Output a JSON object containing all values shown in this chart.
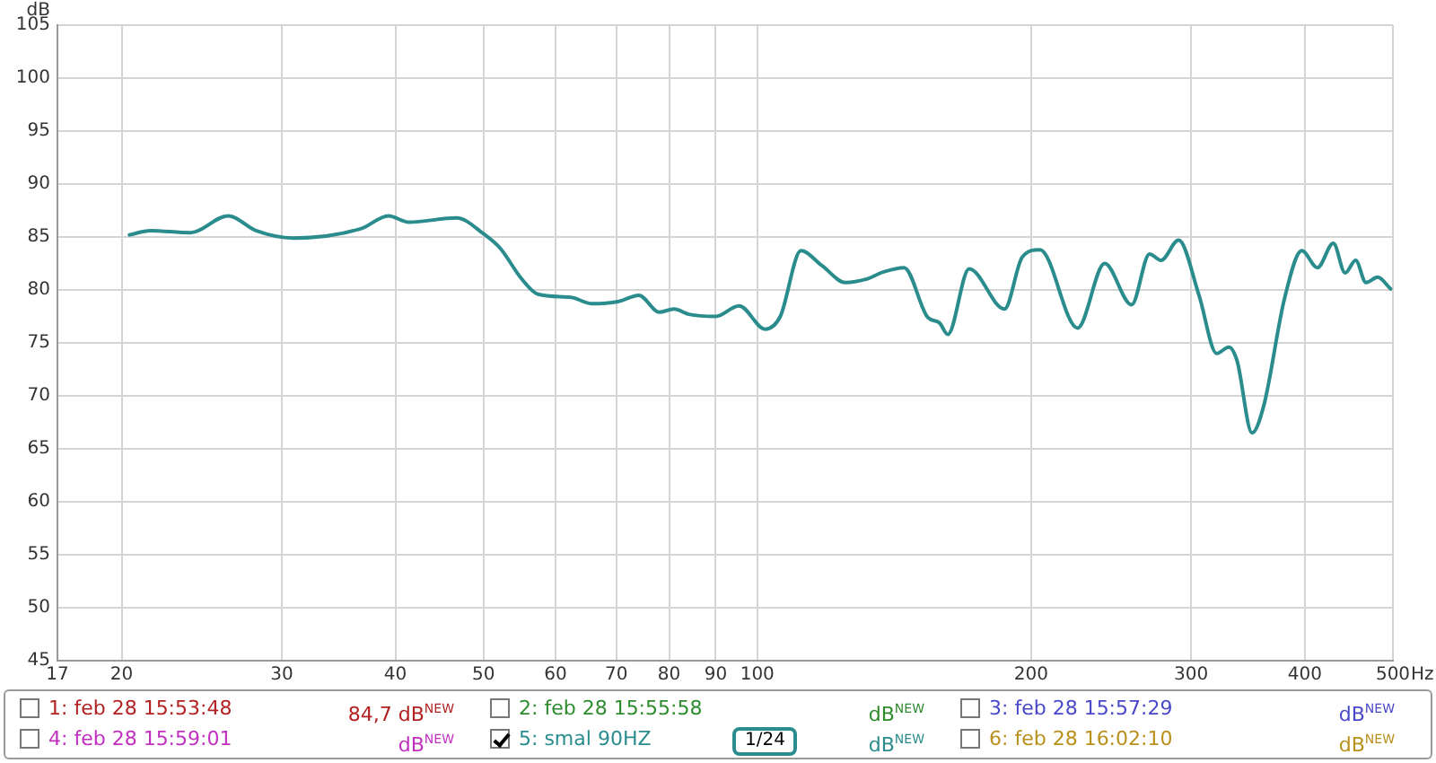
{
  "chart_data": {
    "type": "line",
    "xlabel": "Hz",
    "ylabel": "dB",
    "log": "x",
    "xlim": [
      17,
      500
    ],
    "xticks": [
      17,
      20,
      30,
      40,
      50,
      60,
      70,
      80,
      90,
      100,
      200,
      300,
      400,
      500
    ],
    "ylim": [
      45,
      105
    ],
    "yticks": [
      45,
      50,
      55,
      60,
      65,
      70,
      75,
      80,
      85,
      90,
      95,
      100,
      105
    ],
    "grid": true,
    "legend": "bottom",
    "marker": "none",
    "line_style": "solid",
    "series": [
      {
        "name": "5: smal 90HZ",
        "color": "#2a8c8c",
        "x": [
          20.4,
          21.5,
          23.8,
          26.2,
          28.1,
          30.9,
          36.7,
          39.3,
          41.4,
          46.7,
          50,
          52.2,
          55,
          57.4,
          62.4,
          65.8,
          70.3,
          74.1,
          78,
          81,
          84.1,
          90,
          95.5,
          102,
          106,
          111.7,
          117.8,
          125,
          131.6,
          137.7,
          145,
          154,
          158.6,
          162,
          171,
          187,
          195.6,
          204.6,
          225,
          241,
          258,
          270,
          278,
          290.6,
          306,
          320,
          330,
          337,
          350,
          360.6,
          380,
          397,
          413,
          430,
          443,
          455,
          467,
          481,
          497
        ],
        "values": [
          85.2,
          85.6,
          85.4,
          87.0,
          85.6,
          84.9,
          85.8,
          87.0,
          86.4,
          86.8,
          85.3,
          83.9,
          81.1,
          79.6,
          79.3,
          78.7,
          78.9,
          79.5,
          77.9,
          78.2,
          77.7,
          77.5,
          78.5,
          76.3,
          77.5,
          83.7,
          82.3,
          80.7,
          81.0,
          81.7,
          82.1,
          77.4,
          76.9,
          75.8,
          82.0,
          78.2,
          83.1,
          83.8,
          76.4,
          82.5,
          78.6,
          83.4,
          82.8,
          84.7,
          79.5,
          74.0,
          74.6,
          73.3,
          66.5,
          69.1,
          79.2,
          83.7,
          82.1,
          84.4,
          81.6,
          82.8,
          80.7,
          81.2,
          80.1
        ]
      }
    ],
    "annotations": [
      "1: feb 28 15:53:48",
      "84,7 dB$^{NEW}$",
      "2: feb 28 15:55:58",
      "dB$^{NEW}$",
      "3: feb 28 15:57:29",
      "dB$^{NEW}$",
      "4: feb 28 15:59:01",
      "dB$^{NEW}$",
      "1/24",
      "dB$^{NEW}$",
      "6: feb 28 16:02:10",
      "dB$^{NEW}$"
    ]
  }
}
